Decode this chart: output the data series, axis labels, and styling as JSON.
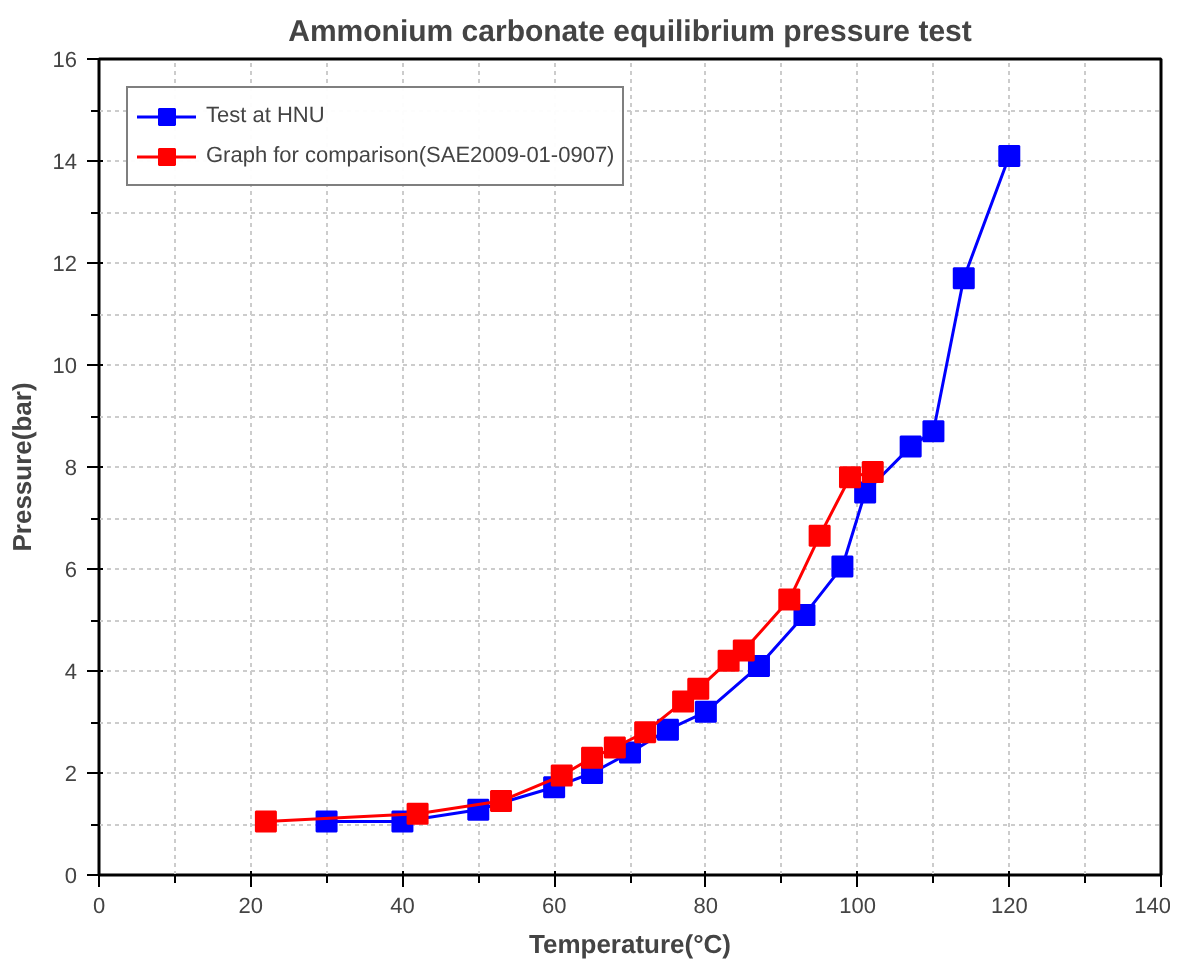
{
  "chart_data": {
    "type": "line",
    "title": "Ammonium carbonate equilibrium pressure test",
    "xlabel": "Temperature(°C)",
    "ylabel": "Pressure(bar)",
    "xlim": [
      0,
      140
    ],
    "xticks": [
      0,
      20,
      40,
      60,
      80,
      100,
      120,
      140
    ],
    "ylim": [
      0,
      16
    ],
    "yticks": [
      0,
      2,
      4,
      6,
      8,
      10,
      12,
      14,
      16
    ],
    "grid": true,
    "legend": "top left",
    "marker": "square",
    "line_style": "solid",
    "series": [
      {
        "name": "Test at HNU",
        "color": "#0000ff",
        "x": [
          30,
          40,
          50,
          60,
          65,
          70,
          75,
          80,
          87,
          93,
          98,
          101,
          107,
          110,
          114,
          120
        ],
        "values": [
          1.05,
          1.05,
          1.28,
          1.72,
          2.0,
          2.4,
          2.85,
          3.2,
          4.1,
          5.1,
          6.05,
          7.5,
          8.4,
          8.7,
          11.7,
          14.1
        ]
      },
      {
        "name": "Graph for comparison(SAE2009-01-0907)",
        "color": "#ff0000",
        "x": [
          22,
          42,
          53,
          61,
          65,
          68,
          72,
          77,
          79,
          83,
          85,
          91,
          95,
          99,
          102
        ],
        "values": [
          1.05,
          1.2,
          1.45,
          1.95,
          2.3,
          2.5,
          2.8,
          3.4,
          3.65,
          4.2,
          4.4,
          5.4,
          6.65,
          7.8,
          7.9
        ]
      }
    ]
  }
}
